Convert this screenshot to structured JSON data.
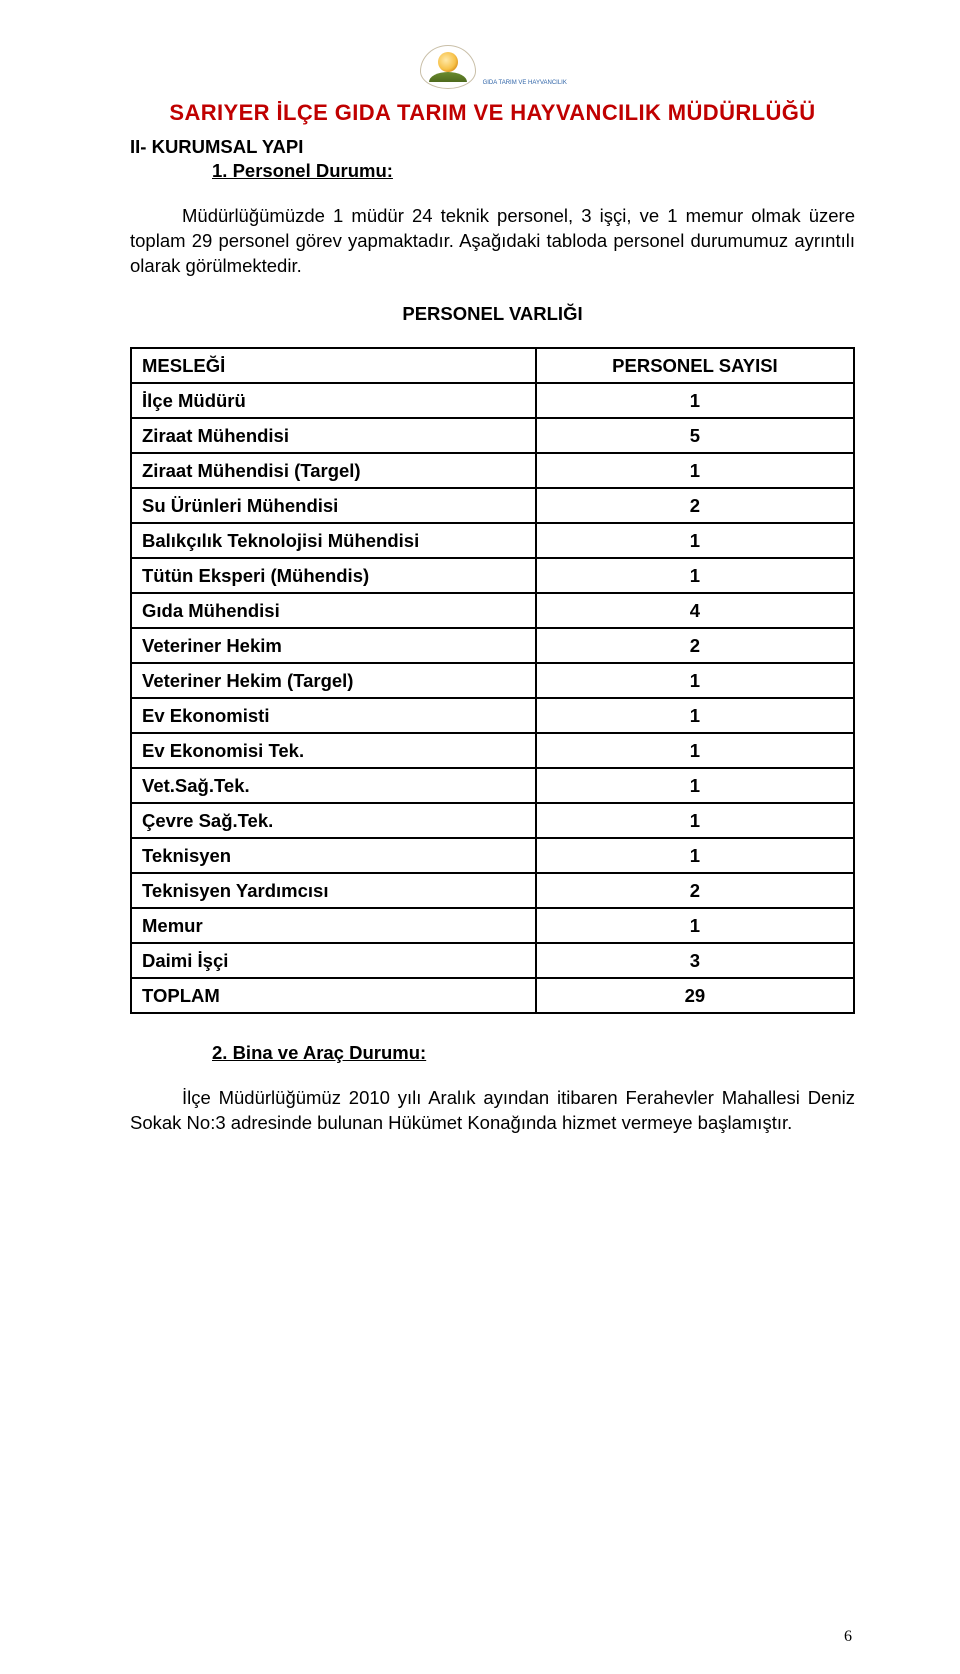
{
  "logo_caption": "GIDA TARIM VE HAYVANCILIK",
  "org_title": "SARIYER İLÇE GIDA TARIM VE HAYVANCILIK MÜDÜRLÜĞÜ",
  "section_heading": "II- KURUMSAL YAPI",
  "sub_heading_1": "1. Personel Durumu:",
  "paragraph_1": "Müdürlüğümüzde 1 müdür 24 teknik personel, 3 işçi, ve 1 memur olmak üzere toplam 29 personel görev yapmaktadır. Aşağıdaki tabloda personel durumumuz ayrıntılı olarak görülmektedir.",
  "table_title": "PERSONEL VARLIĞI",
  "table": {
    "header": [
      "MESLEĞİ",
      "PERSONEL SAYISI"
    ],
    "rows": [
      [
        "İlçe Müdürü",
        "1"
      ],
      [
        "Ziraat Mühendisi",
        "5"
      ],
      [
        "Ziraat Mühendisi (Targel)",
        "1"
      ],
      [
        "Su Ürünleri Mühendisi",
        "2"
      ],
      [
        "Balıkçılık Teknolojisi Mühendisi",
        "1"
      ],
      [
        "Tütün Eksperi (Mühendis)",
        "1"
      ],
      [
        "Gıda Mühendisi",
        "4"
      ],
      [
        "Veteriner Hekim",
        "2"
      ],
      [
        "Veteriner Hekim (Targel)",
        "1"
      ],
      [
        "Ev Ekonomisti",
        "1"
      ],
      [
        "Ev Ekonomisi Tek.",
        "1"
      ],
      [
        "Vet.Sağ.Tek.",
        "1"
      ],
      [
        "Çevre Sağ.Tek.",
        "1"
      ],
      [
        "Teknisyen",
        "1"
      ],
      [
        "Teknisyen Yardımcısı",
        "2"
      ],
      [
        "Memur",
        "1"
      ],
      [
        "Daimi İşçi",
        "3"
      ],
      [
        "TOPLAM",
        "29"
      ]
    ]
  },
  "sub_heading_2": "2. Bina ve Araç Durumu:",
  "paragraph_2": "İlçe Müdürlüğümüz 2010 yılı Aralık ayından itibaren Ferahevler Mahallesi Deniz Sokak No:3 adresinde bulunan Hükümet Konağında hizmet vermeye başlamıştır.",
  "page_number": "6",
  "colors": {
    "title_red": "#c00000",
    "text_black": "#000000",
    "background": "#ffffff",
    "border": "#000000"
  }
}
